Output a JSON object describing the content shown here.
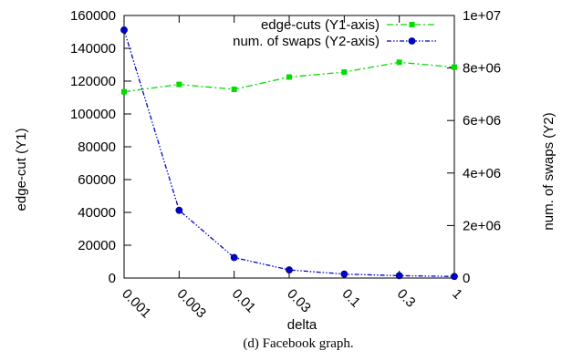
{
  "caption": "(d) Facebook graph.",
  "chart_data": {
    "type": "line",
    "categories": [
      "0.001",
      "0.003",
      "0.01",
      "0.03",
      "0.1",
      "0.3",
      "1"
    ],
    "xlabel": "delta",
    "ylabel": "edge-cut (Y1)",
    "y2label": "num. of swaps (Y2)",
    "ylim": [
      0,
      160000
    ],
    "y2lim": [
      0,
      10000000
    ],
    "yticks": [
      0,
      20000,
      40000,
      60000,
      80000,
      100000,
      120000,
      140000,
      160000
    ],
    "y2ticks": [
      0,
      2000000,
      4000000,
      6000000,
      8000000,
      10000000
    ],
    "yticklabels": [
      "0",
      "20000",
      "40000",
      "60000",
      "80000",
      "100000",
      "120000",
      "140000",
      "160000"
    ],
    "y2ticklabels": [
      "0",
      "2e+06",
      "4e+06",
      "6e+06",
      "8e+06",
      "1e+07"
    ],
    "grid": false,
    "legend_position": "top-right",
    "series": [
      {
        "name": "edge-cuts (Y1-axis)",
        "axis": "y1",
        "color": "#00dd00",
        "marker": "square",
        "dash": "dash-dot",
        "values": [
          113500,
          118000,
          115000,
          122500,
          125500,
          131500,
          128500
        ]
      },
      {
        "name": "num. of swaps (Y2-axis)",
        "axis": "y2",
        "color": "#0000cc",
        "marker": "circle",
        "dash": "dash-dot-dot",
        "values": [
          9450000,
          2580000,
          780000,
          310000,
          150000,
          90000,
          60000
        ]
      }
    ]
  }
}
